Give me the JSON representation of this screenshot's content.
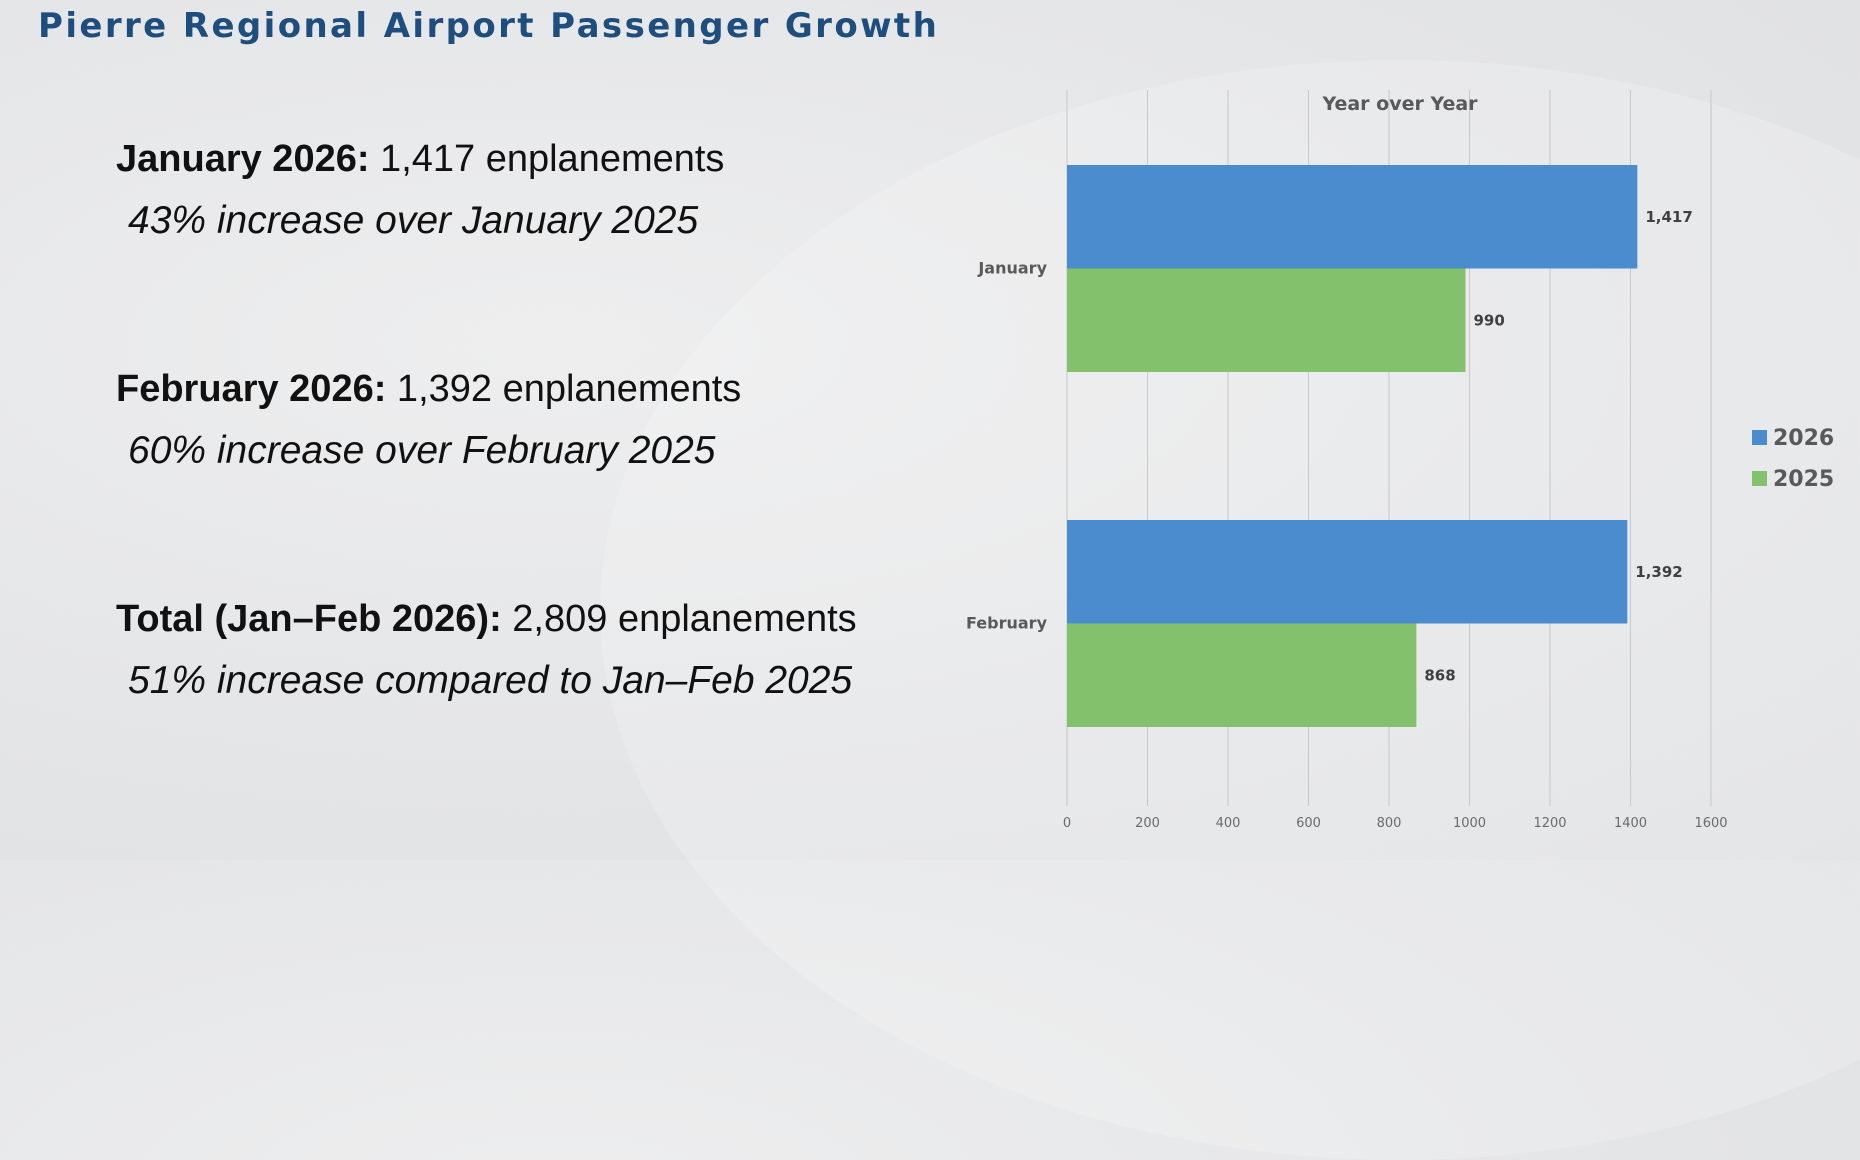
{
  "slide": {
    "title": "Pierre Regional Airport Passenger Growth"
  },
  "stats": [
    {
      "label": "January 2026:",
      "value": " 1,417 enplanements",
      "sub": "43% increase over January 2025"
    },
    {
      "label": "February 2026:",
      "value": " 1,392 enplanements",
      "sub": "60% increase over February 2025"
    },
    {
      "label": "Total (Jan–Feb 2026):",
      "value": " 2,809 enplanements",
      "sub": "51% increase compared to Jan–Feb 2025"
    }
  ],
  "chart_data": {
    "type": "bar",
    "orientation": "horizontal",
    "title": "Year over Year",
    "categories": [
      "January",
      "February"
    ],
    "series": [
      {
        "name": "2026",
        "color": "#4a8ccd",
        "values": [
          1417,
          1392
        ],
        "labels": [
          "1,417",
          "1,392"
        ]
      },
      {
        "name": "2025",
        "color": "#84c16c",
        "values": [
          990,
          868
        ],
        "labels": [
          "990",
          "868"
        ]
      }
    ],
    "xlabel": "",
    "ylabel": "",
    "xlim": [
      0,
      1600
    ],
    "x_ticks": [
      0,
      200,
      400,
      600,
      800,
      1000,
      1200,
      1400,
      1600
    ],
    "grid": true,
    "legend": "right"
  }
}
